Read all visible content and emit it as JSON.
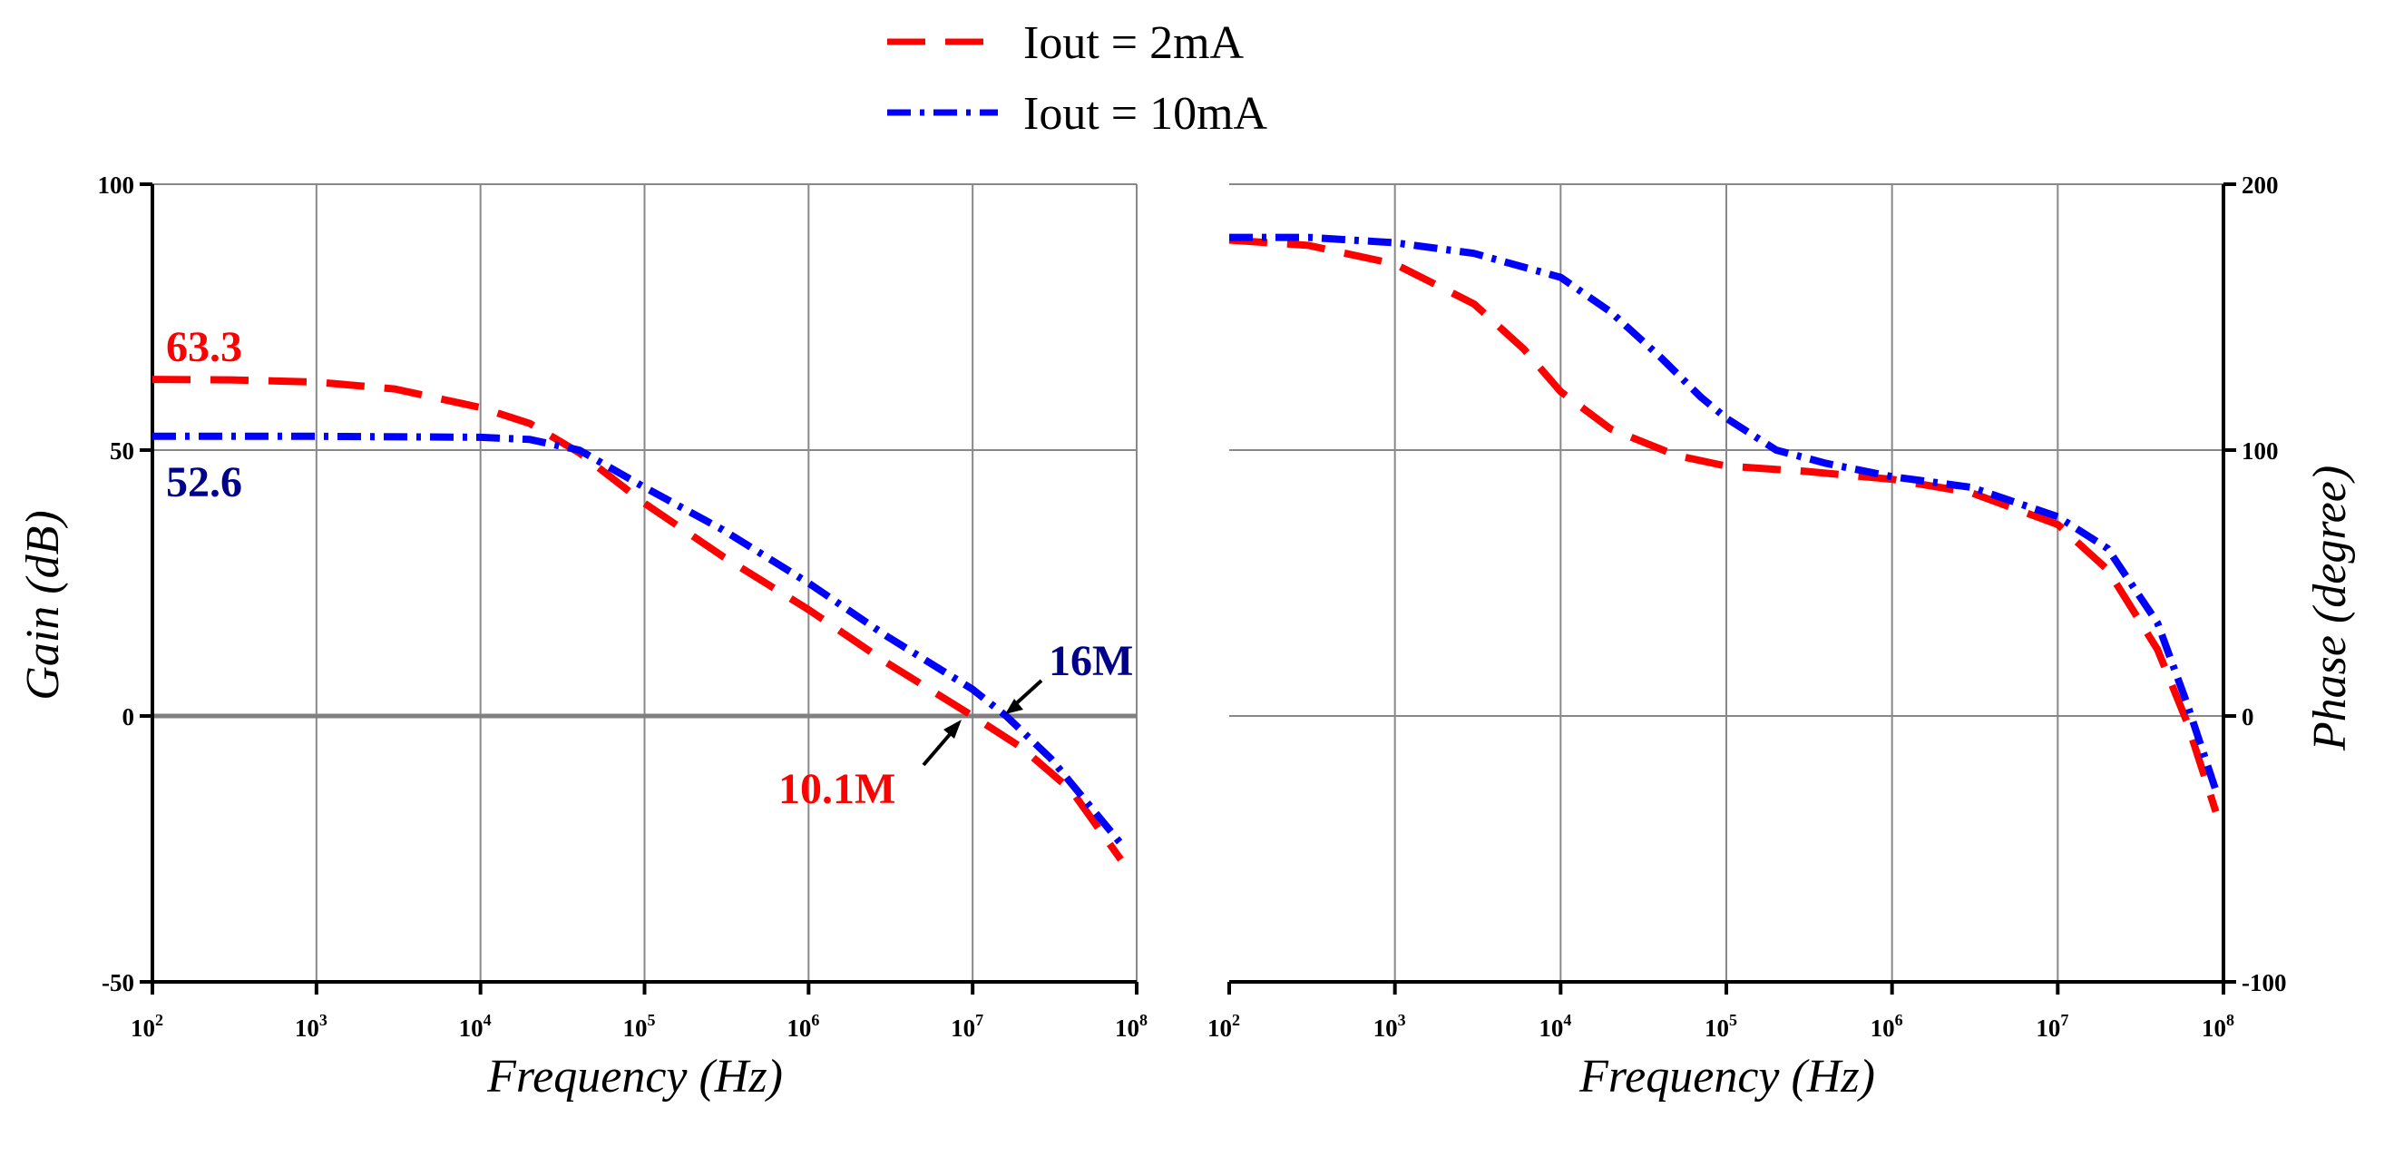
{
  "colors": {
    "series_2mA": "#ff0000",
    "series_10mA": "#0000ff",
    "annot_gain_2mA": "#ff0000",
    "annot_gain_10mA": "#00008b",
    "grid": "#888888",
    "zero_line": "#808080"
  },
  "legend": {
    "placement": "top-center",
    "items": [
      {
        "label": "Iout = 2mA",
        "style": "dashed",
        "color": "#ff0000"
      },
      {
        "label": "Iout = 10mA",
        "style": "dash-dot",
        "color": "#0000ff"
      }
    ]
  },
  "chart_data": [
    {
      "type": "line",
      "xscale": "log",
      "xlim": [
        100,
        100000000
      ],
      "ylim": [
        -50,
        100
      ],
      "xlabel": "Frequency (Hz)",
      "ylabel": "Gain (dB)",
      "grid": true,
      "x_tick_labels": [
        {
          "base": "10",
          "exp": "2"
        },
        {
          "base": "10",
          "exp": "3"
        },
        {
          "base": "10",
          "exp": "4"
        },
        {
          "base": "10",
          "exp": "5"
        },
        {
          "base": "10",
          "exp": "6"
        },
        {
          "base": "10",
          "exp": "7"
        },
        {
          "base": "10",
          "exp": "8"
        }
      ],
      "y_tick_labels": [
        "100",
        "50",
        "0",
        "-50"
      ],
      "series": [
        {
          "name": "Iout = 2mA",
          "x": [
            100,
            300,
            1000,
            3000,
            10000,
            20000,
            40000,
            100000,
            300000,
            1000000,
            3000000,
            10000000,
            20000000,
            40000000,
            80000000
          ],
          "y": [
            63.3,
            63.2,
            62.8,
            61.5,
            58,
            55,
            49.5,
            40,
            30,
            20,
            10,
            0,
            -6,
            -14,
            -27
          ]
        },
        {
          "name": "Iout = 10mA",
          "x": [
            100,
            1000,
            10000,
            20000,
            40000,
            100000,
            300000,
            1000000,
            3000000,
            10000000,
            16000000,
            30000000,
            80000000
          ],
          "y": [
            52.6,
            52.6,
            52.4,
            52,
            50,
            43,
            35,
            25,
            15,
            5,
            0,
            -8,
            -24
          ]
        }
      ],
      "annotations": [
        {
          "text": "63.3",
          "x": 100,
          "y": 63.3,
          "color": "#ff0000"
        },
        {
          "text": "52.6",
          "x": 100,
          "y": 52.6,
          "color": "#00008b"
        },
        {
          "text": "10.1M",
          "x": 10100000,
          "y": 0,
          "color": "#ff0000",
          "arrow": true
        },
        {
          "text": "16M",
          "x": 16000000,
          "y": 0,
          "color": "#00008b",
          "arrow": true
        }
      ]
    },
    {
      "type": "line",
      "xscale": "log",
      "xlim": [
        100,
        100000000
      ],
      "ylim": [
        -100,
        200
      ],
      "xlabel": "Frequency (Hz)",
      "ylabel": "Phase (degree)",
      "grid": true,
      "y_axis_side": "right",
      "x_tick_labels": [
        {
          "base": "10",
          "exp": "2"
        },
        {
          "base": "10",
          "exp": "3"
        },
        {
          "base": "10",
          "exp": "4"
        },
        {
          "base": "10",
          "exp": "5"
        },
        {
          "base": "10",
          "exp": "6"
        },
        {
          "base": "10",
          "exp": "7"
        },
        {
          "base": "10",
          "exp": "8"
        }
      ],
      "y_tick_labels": [
        "200",
        "100",
        "0",
        "-100"
      ],
      "series": [
        {
          "name": "Iout = 2mA",
          "x": [
            100,
            300,
            1000,
            3000,
            6000,
            10000,
            20000,
            50000,
            100000,
            300000,
            1000000,
            3000000,
            10000000,
            20000000,
            40000000,
            60000000,
            90000000
          ],
          "y": [
            179,
            177,
            170,
            155,
            138,
            122,
            108,
            98,
            94,
            92,
            89,
            84,
            72,
            55,
            25,
            -2,
            -36
          ]
        },
        {
          "name": "Iout = 10mA",
          "x": [
            100,
            300,
            1000,
            3000,
            10000,
            20000,
            40000,
            70000,
            100000,
            200000,
            400000,
            1000000,
            3000000,
            10000000,
            20000000,
            40000000,
            60000000,
            90000000
          ],
          "y": [
            180,
            180,
            178,
            174,
            165,
            152,
            135,
            120,
            112,
            100,
            95,
            90,
            86,
            75,
            63,
            35,
            5,
            -28
          ]
        }
      ]
    }
  ]
}
